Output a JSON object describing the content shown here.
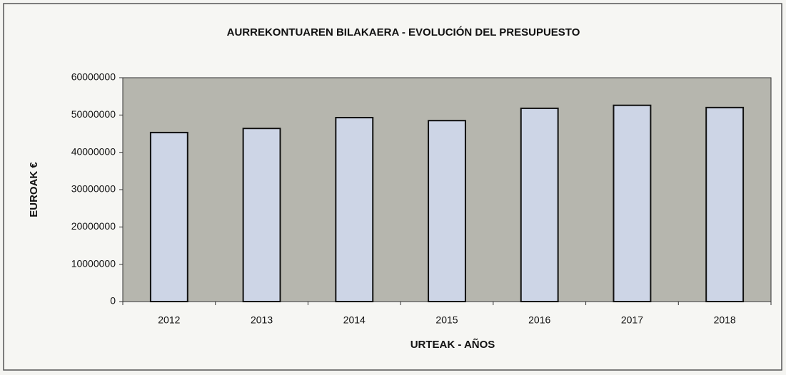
{
  "chart_data": {
    "type": "bar",
    "title": "AURREKONTUAREN BILAKAERA - EVOLUCIÓN DEL PRESUPUESTO",
    "x_label": "URTEAK - AÑOS",
    "y_label": "EUROAK €",
    "categories": [
      "2012",
      "2013",
      "2014",
      "2015",
      "2016",
      "2017",
      "2018"
    ],
    "values": [
      45300000,
      46400000,
      49300000,
      48500000,
      51800000,
      52600000,
      52000000
    ],
    "color": "#cdd5e6",
    "ylim": [
      0,
      60000000
    ],
    "yticks": [
      0,
      10000000,
      20000000,
      30000000,
      40000000,
      50000000,
      60000000
    ],
    "grid": false
  }
}
